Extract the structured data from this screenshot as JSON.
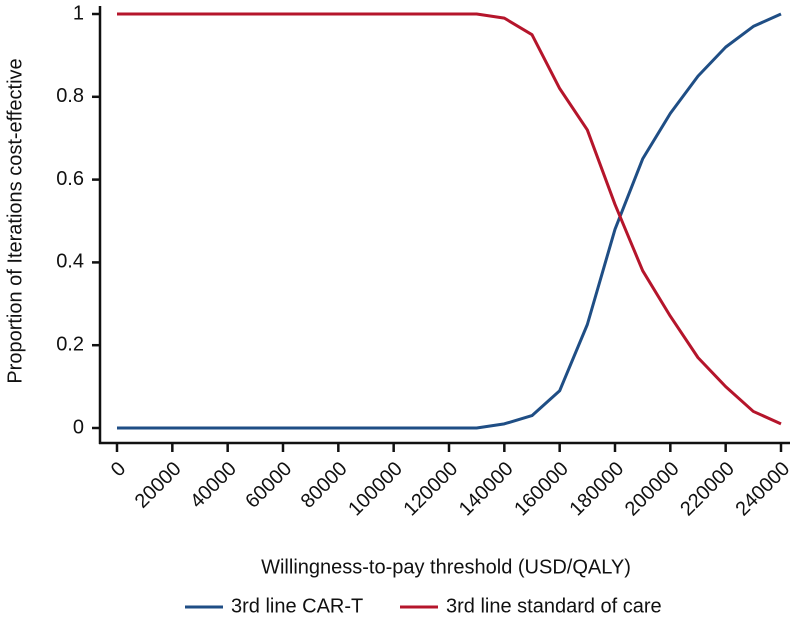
{
  "chart_data": {
    "type": "line",
    "x_label": "Willingness-to-pay threshold (USD/QALY)",
    "y_label": "Proportion of Iterations cost-effective",
    "x": [
      0,
      10000,
      20000,
      30000,
      40000,
      50000,
      60000,
      70000,
      80000,
      90000,
      100000,
      110000,
      120000,
      130000,
      140000,
      150000,
      160000,
      170000,
      180000,
      190000,
      200000,
      210000,
      220000,
      230000,
      240000
    ],
    "series": [
      {
        "name": "3rd line CAR-T",
        "color": "#1f4e85",
        "values": [
          0,
          0,
          0,
          0,
          0,
          0,
          0,
          0,
          0,
          0,
          0,
          0,
          0,
          0,
          0.01,
          0.03,
          0.09,
          0.25,
          0.48,
          0.65,
          0.76,
          0.85,
          0.92,
          0.97,
          1.0
        ]
      },
      {
        "name": "3rd line standard of care",
        "color": "#b5152b",
        "values": [
          1,
          1,
          1,
          1,
          1,
          1,
          1,
          1,
          1,
          1,
          1,
          1,
          1,
          1,
          0.99,
          0.95,
          0.82,
          0.72,
          0.54,
          0.38,
          0.27,
          0.17,
          0.1,
          0.04,
          0.01
        ]
      }
    ],
    "xlim": [
      0,
      240000
    ],
    "xticks": [
      0,
      20000,
      40000,
      60000,
      80000,
      100000,
      120000,
      140000,
      160000,
      180000,
      200000,
      220000,
      240000
    ],
    "ylim": [
      0,
      1
    ],
    "yticks": [
      0,
      0.2,
      0.4,
      0.6,
      0.8,
      1
    ],
    "legend": "bottom"
  }
}
